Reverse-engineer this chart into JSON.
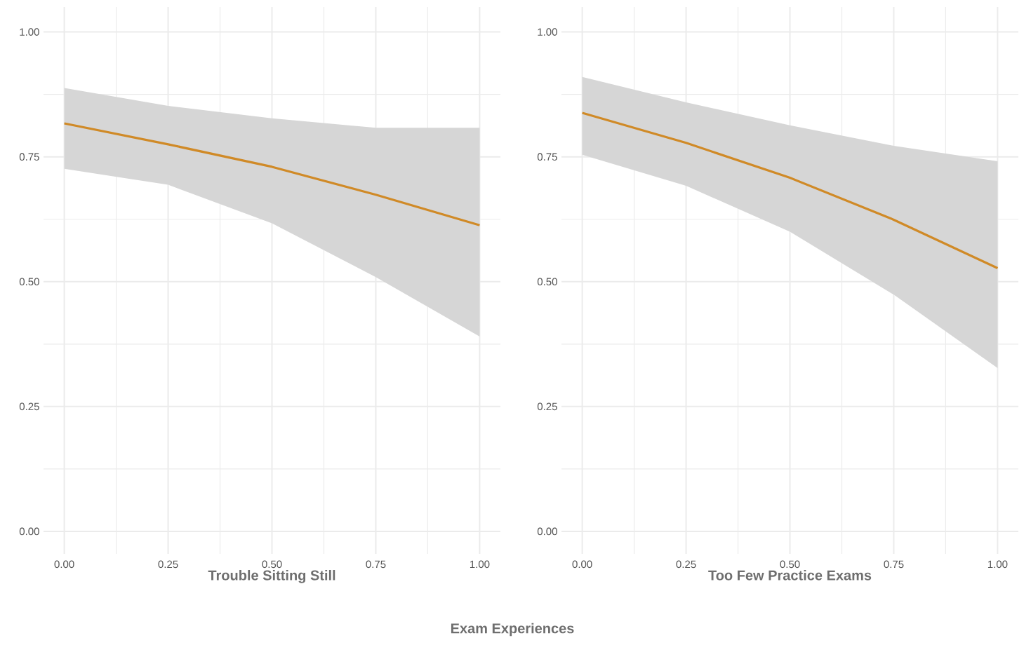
{
  "chart_data": [
    {
      "type": "line",
      "xlabel": "Trouble Sitting Still",
      "annotations": [
        "Exam Experiences"
      ],
      "x": [
        0,
        0.25,
        0.5,
        0.75,
        1
      ],
      "series": [
        {
          "color": "#d08a27",
          "values": [
            0.817,
            0.775,
            0.73,
            0.674,
            0.613
          ],
          "lower": [
            0.726,
            0.694,
            0.617,
            0.509,
            0.39
          ],
          "upper": [
            0.888,
            0.852,
            0.827,
            0.808,
            0.808
          ]
        }
      ],
      "xlim": [
        -0.05,
        1.05
      ],
      "ylim": [
        -0.045,
        1.05
      ],
      "xticks": [
        {
          "value": 0,
          "label": "0.00"
        },
        {
          "value": 0.25,
          "label": "0.25"
        },
        {
          "value": 0.5,
          "label": "0.50"
        },
        {
          "value": 0.75,
          "label": "0.75"
        },
        {
          "value": 1,
          "label": "1.00"
        }
      ],
      "yticks": [
        {
          "value": 0,
          "label": "0.00"
        },
        {
          "value": 0.25,
          "label": "0.25"
        },
        {
          "value": 0.5,
          "label": "0.50"
        },
        {
          "value": 0.75,
          "label": "0.75"
        },
        {
          "value": 1,
          "label": "1.00"
        }
      ],
      "grid": true
    },
    {
      "type": "line",
      "xlabel": "Too Few Practice Exams",
      "x": [
        0,
        0.25,
        0.5,
        0.75,
        1
      ],
      "series": [
        {
          "color": "#d08a27",
          "values": [
            0.838,
            0.778,
            0.708,
            0.624,
            0.527
          ],
          "lower": [
            0.754,
            0.692,
            0.6,
            0.474,
            0.327
          ],
          "upper": [
            0.91,
            0.859,
            0.813,
            0.772,
            0.741
          ]
        }
      ],
      "xlim": [
        -0.05,
        1.05
      ],
      "ylim": [
        -0.045,
        1.05
      ],
      "xticks": [
        {
          "value": 0,
          "label": "0.00"
        },
        {
          "value": 0.25,
          "label": "0.25"
        },
        {
          "value": 0.5,
          "label": "0.50"
        },
        {
          "value": 0.75,
          "label": "0.75"
        },
        {
          "value": 1,
          "label": "1.00"
        }
      ],
      "yticks": [
        {
          "value": 0,
          "label": "0.00"
        },
        {
          "value": 0.25,
          "label": "0.25"
        },
        {
          "value": 0.5,
          "label": "0.50"
        },
        {
          "value": 0.75,
          "label": "0.75"
        },
        {
          "value": 1,
          "label": "1.00"
        }
      ],
      "grid": true
    }
  ]
}
